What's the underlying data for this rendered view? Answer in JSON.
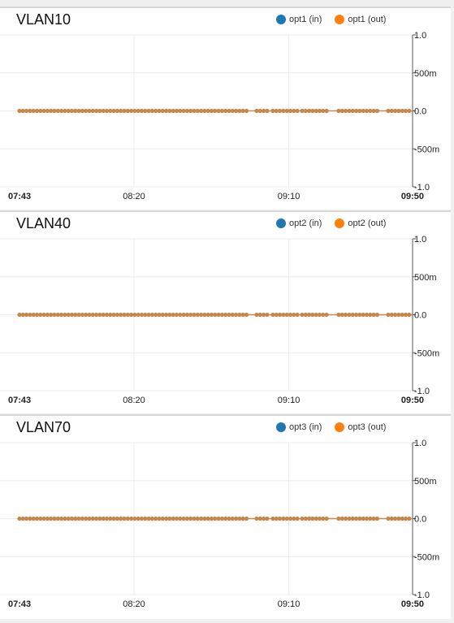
{
  "colors": {
    "in": "#1f77b4",
    "out": "#ff7f0e",
    "line": "#c8874a"
  },
  "chart_data": [
    {
      "type": "line",
      "title": "VLAN10",
      "series": [
        {
          "name": "opt1 (in)",
          "values": [
            0,
            0
          ]
        },
        {
          "name": "opt1 (out)",
          "values": [
            0,
            0
          ]
        }
      ],
      "x": [
        "07:43",
        "09:50"
      ],
      "ylim": [
        -1.0,
        1.0
      ],
      "y_ticks": [
        "1.0",
        "500m",
        "0.0",
        "-500m",
        "-1.0"
      ],
      "x_ticks": [
        "07:43",
        "08:20",
        "09:10",
        "09:50"
      ],
      "grid": true,
      "legend_position": "top-right"
    },
    {
      "type": "line",
      "title": "VLAN40",
      "series": [
        {
          "name": "opt2 (in)",
          "values": [
            0,
            0
          ]
        },
        {
          "name": "opt2 (out)",
          "values": [
            0,
            0
          ]
        }
      ],
      "x": [
        "07:43",
        "09:50"
      ],
      "ylim": [
        -1.0,
        1.0
      ],
      "y_ticks": [
        "1.0",
        "500m",
        "0.0",
        "-500m",
        "-1.0"
      ],
      "x_ticks": [
        "07:43",
        "08:20",
        "09:10",
        "09:50"
      ],
      "grid": true,
      "legend_position": "top-right"
    },
    {
      "type": "line",
      "title": "VLAN70",
      "series": [
        {
          "name": "opt3 (in)",
          "values": [
            0,
            0
          ]
        },
        {
          "name": "opt3 (out)",
          "values": [
            0,
            0
          ]
        }
      ],
      "x": [
        "07:43",
        "09:50"
      ],
      "ylim": [
        -1.0,
        1.0
      ],
      "y_ticks": [
        "1.0",
        "500m",
        "0.0",
        "-500m",
        "-1.0"
      ],
      "x_ticks": [
        "07:43",
        "08:20",
        "09:10",
        "09:50"
      ],
      "grid": true,
      "legend_position": "top-right"
    }
  ]
}
